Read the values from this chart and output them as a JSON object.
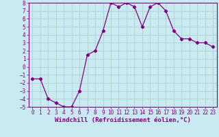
{
  "x": [
    0,
    1,
    2,
    3,
    4,
    5,
    6,
    7,
    8,
    9,
    10,
    11,
    12,
    13,
    14,
    15,
    16,
    17,
    18,
    19,
    20,
    21,
    22,
    23
  ],
  "y": [
    -1.5,
    -1.5,
    -4.0,
    -4.5,
    -5.0,
    -5.0,
    -3.0,
    1.5,
    2.0,
    4.5,
    8.0,
    7.5,
    8.0,
    7.5,
    5.0,
    7.5,
    8.0,
    7.0,
    4.5,
    3.5,
    3.5,
    3.0,
    3.0,
    2.5
  ],
  "line_color": "#800080",
  "marker": "D",
  "marker_size": 2.2,
  "bg_color": "#c8eaf0",
  "grid_color": "#aacccc",
  "xlabel": "Windchill (Refroidissement éolien,°C)",
  "ylabel": "",
  "xlim_min": -0.5,
  "xlim_max": 23.5,
  "ylim_min": -5,
  "ylim_max": 8,
  "xtick_step": 1,
  "ytick_step": 1,
  "axis_color": "#800080",
  "tick_color": "#800080",
  "label_color": "#800080",
  "label_fontsize": 6.5,
  "tick_fontsize": 5.5,
  "linewidth": 0.9
}
